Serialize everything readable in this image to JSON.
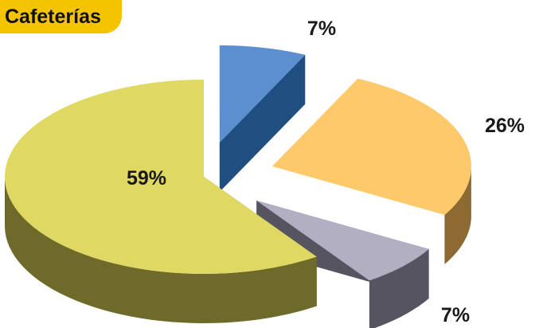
{
  "title": "Cafeterías",
  "chart_data": {
    "type": "pie",
    "title": "Cafeterías",
    "categories": [
      "",
      "",
      "",
      ""
    ],
    "values": [
      7,
      26,
      7,
      59
    ],
    "labels": [
      "7%",
      "26%",
      "7%",
      "59%"
    ],
    "colors": {
      "top": [
        "#5b8fcf",
        "#fdc96b",
        "#b3afc2",
        "#dfd862"
      ],
      "side": [
        "#1f4e80",
        "#8c6a32",
        "#575462",
        "#6e6a2a"
      ]
    },
    "exploded": [
      true,
      true,
      true,
      false
    ],
    "three_d": true
  }
}
